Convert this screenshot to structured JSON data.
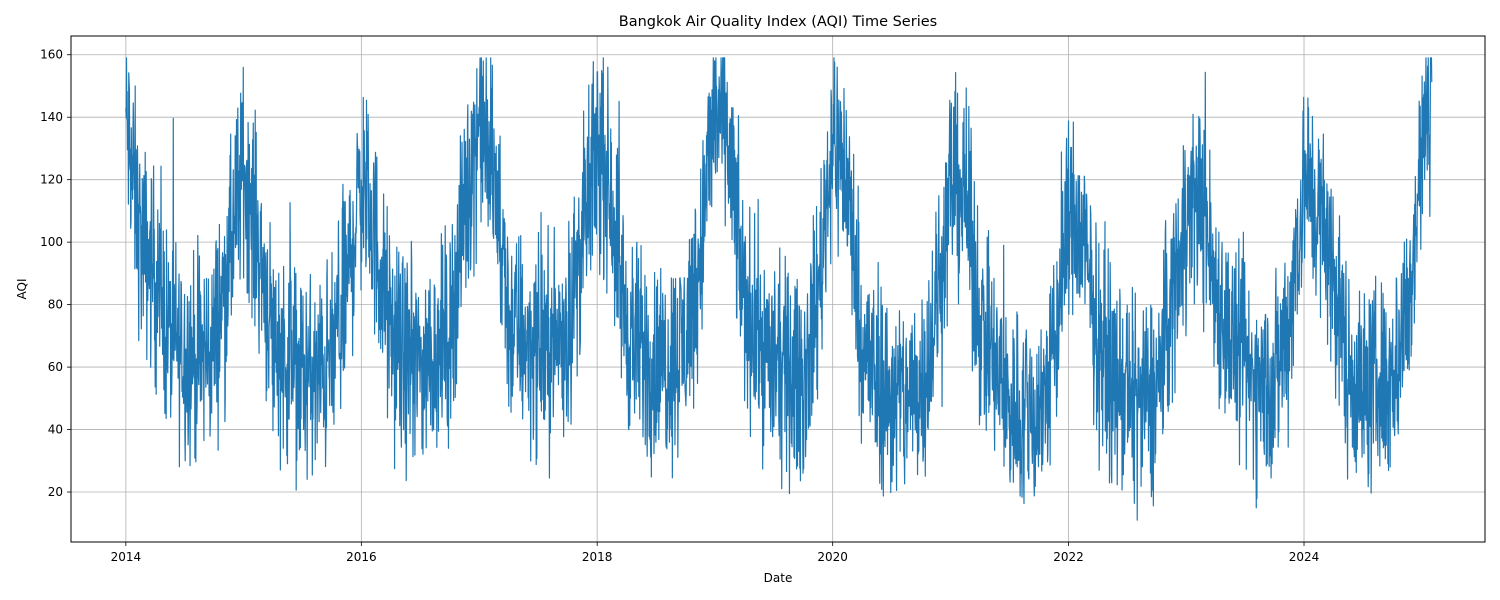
{
  "chart_data": {
    "type": "line",
    "title": "Bangkok Air Quality Index (AQI) Time Series",
    "xlabel": "Date",
    "ylabel": "AQI",
    "x_range": [
      "2013-07-15",
      "2025-07-15"
    ],
    "ylim": [
      4,
      166
    ],
    "grid": true,
    "x_ticks": [
      {
        "label": "2014",
        "date": "2014-01-01"
      },
      {
        "label": "2016",
        "date": "2016-01-01"
      },
      {
        "label": "2018",
        "date": "2018-01-01"
      },
      {
        "label": "2020",
        "date": "2020-01-01"
      },
      {
        "label": "2022",
        "date": "2022-01-01"
      },
      {
        "label": "2024",
        "date": "2024-01-01"
      }
    ],
    "y_ticks": [
      20,
      40,
      60,
      80,
      100,
      120,
      140,
      160
    ],
    "series": [
      {
        "color": "#1f77b4",
        "x": [
          "2014-01-01",
          "2014-02-15",
          "2014-04-01",
          "2014-05-15",
          "2014-07-01",
          "2014-08-15",
          "2014-10-01",
          "2014-11-15",
          "2015-01-01",
          "2015-02-15",
          "2015-04-01",
          "2015-05-15",
          "2015-07-01",
          "2015-08-15",
          "2015-10-01",
          "2015-11-15",
          "2016-01-01",
          "2016-02-15",
          "2016-04-01",
          "2016-05-15",
          "2016-07-01",
          "2016-08-15",
          "2016-10-01",
          "2016-11-15",
          "2017-01-01",
          "2017-02-15",
          "2017-04-01",
          "2017-05-15",
          "2017-07-01",
          "2017-08-15",
          "2017-10-01",
          "2017-11-15",
          "2018-01-01",
          "2018-02-15",
          "2018-04-01",
          "2018-05-15",
          "2018-07-01",
          "2018-08-15",
          "2018-10-01",
          "2018-11-15",
          "2019-01-01",
          "2019-02-15",
          "2019-04-01",
          "2019-05-15",
          "2019-07-01",
          "2019-08-15",
          "2019-10-01",
          "2019-11-15",
          "2020-01-01",
          "2020-02-15",
          "2020-04-01",
          "2020-05-15",
          "2020-07-01",
          "2020-08-15",
          "2020-10-01",
          "2020-11-15",
          "2021-01-01",
          "2021-02-15",
          "2021-04-01",
          "2021-05-15",
          "2021-07-01",
          "2021-08-15",
          "2021-10-01",
          "2021-11-15",
          "2022-01-01",
          "2022-02-15",
          "2022-04-01",
          "2022-05-15",
          "2022-07-01",
          "2022-08-15",
          "2022-10-01",
          "2022-11-15",
          "2023-01-01",
          "2023-02-15",
          "2023-04-01",
          "2023-05-15",
          "2023-07-01",
          "2023-08-15",
          "2023-10-01",
          "2023-11-15",
          "2024-01-01",
          "2024-02-15",
          "2024-04-01",
          "2024-05-15",
          "2024-07-01",
          "2024-08-15",
          "2024-10-01",
          "2024-11-15",
          "2025-01-01",
          "2025-01-31"
        ],
        "y": [
          140,
          100,
          90,
          70,
          65,
          62,
          68,
          92,
          125,
          100,
          70,
          62,
          58,
          55,
          62,
          85,
          120,
          100,
          70,
          62,
          60,
          65,
          70,
          110,
          140,
          120,
          75,
          70,
          65,
          68,
          72,
          100,
          130,
          115,
          72,
          65,
          60,
          62,
          68,
          95,
          145,
          130,
          80,
          70,
          60,
          58,
          55,
          82,
          135,
          120,
          68,
          55,
          50,
          50,
          55,
          75,
          120,
          115,
          75,
          60,
          48,
          45,
          45,
          62,
          110,
          100,
          70,
          58,
          50,
          48,
          52,
          80,
          110,
          115,
          85,
          70,
          58,
          55,
          55,
          75,
          120,
          110,
          90,
          60,
          52,
          55,
          58,
          75,
          130,
          150
        ],
        "noise": 16,
        "min": 11,
        "max": 159
      }
    ]
  }
}
